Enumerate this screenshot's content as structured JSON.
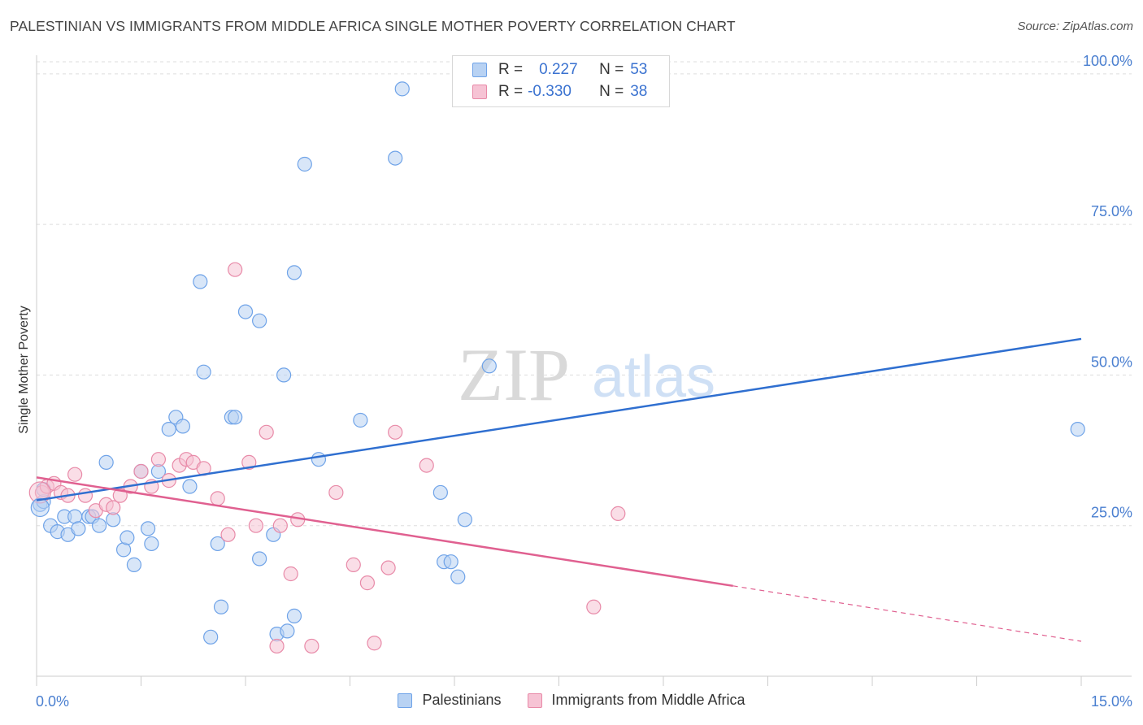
{
  "header": {
    "title": "PALESTINIAN VS IMMIGRANTS FROM MIDDLE AFRICA SINGLE MOTHER POVERTY CORRELATION CHART",
    "source": "Source: ZipAtlas.com"
  },
  "watermark": {
    "zip": "ZIP",
    "atlas": "atlas"
  },
  "legend": {
    "rows": [
      {
        "r_label": "R =",
        "r_value": "0.227",
        "n_label": "N =",
        "n_value": "53"
      },
      {
        "r_label": "R =",
        "r_value": "-0.330",
        "n_label": "N =",
        "n_value": "38"
      }
    ]
  },
  "chart_data": {
    "type": "scatter",
    "title": "PALESTINIAN VS IMMIGRANTS FROM MIDDLE AFRICA SINGLE MOTHER POVERTY CORRELATION CHART",
    "xlabel": "",
    "ylabel": "Single Mother Poverty",
    "xlim": [
      0,
      15
    ],
    "ylim": [
      0,
      102
    ],
    "x_tick_labels": [
      "0.0%",
      "15.0%"
    ],
    "y_ticks": [
      25,
      50,
      75,
      100
    ],
    "y_tick_labels": [
      "25.0%",
      "50.0%",
      "75.0%",
      "100.0%"
    ],
    "grid": true,
    "legend_placement": "top-center",
    "series": [
      {
        "name": "Palestinians",
        "color": "#6fa3e8",
        "fill": "#b8d2f3",
        "points": [
          [
            0.05,
            28.5
          ],
          [
            0.1,
            29.0
          ],
          [
            0.2,
            25.0
          ],
          [
            0.3,
            24.0
          ],
          [
            0.4,
            26.5
          ],
          [
            0.45,
            23.5
          ],
          [
            0.55,
            26.5
          ],
          [
            0.6,
            24.5
          ],
          [
            0.75,
            26.5
          ],
          [
            0.8,
            26.5
          ],
          [
            0.9,
            25.0
          ],
          [
            1.0,
            35.5
          ],
          [
            1.1,
            26.0
          ],
          [
            1.25,
            21.0
          ],
          [
            1.3,
            23.0
          ],
          [
            1.4,
            18.5
          ],
          [
            1.5,
            34.0
          ],
          [
            1.6,
            24.5
          ],
          [
            1.65,
            22.0
          ],
          [
            1.75,
            34.0
          ],
          [
            1.9,
            41.0
          ],
          [
            2.0,
            43.0
          ],
          [
            2.1,
            41.5
          ],
          [
            2.2,
            31.5
          ],
          [
            2.35,
            65.5
          ],
          [
            2.4,
            50.5
          ],
          [
            2.5,
            6.5
          ],
          [
            2.6,
            22.0
          ],
          [
            2.65,
            11.5
          ],
          [
            2.8,
            43.0
          ],
          [
            2.85,
            43.0
          ],
          [
            3.0,
            60.5
          ],
          [
            3.2,
            19.5
          ],
          [
            3.2,
            59.0
          ],
          [
            3.4,
            23.5
          ],
          [
            3.45,
            7.0
          ],
          [
            3.6,
            7.5
          ],
          [
            3.55,
            50.0
          ],
          [
            3.7,
            10.0
          ],
          [
            3.7,
            67.0
          ],
          [
            3.85,
            85.0
          ],
          [
            4.05,
            36.0
          ],
          [
            4.65,
            42.5
          ],
          [
            5.15,
            86.0
          ],
          [
            5.25,
            97.5
          ],
          [
            5.8,
            30.5
          ],
          [
            5.85,
            19.0
          ],
          [
            5.95,
            19.0
          ],
          [
            6.05,
            16.5
          ],
          [
            6.15,
            26.0
          ],
          [
            6.5,
            51.5
          ],
          [
            14.95,
            41.0
          ],
          [
            0.1,
            31.0
          ]
        ],
        "trend": {
          "x_start": 0.0,
          "y_start": 29.2,
          "x_end": 15.0,
          "y_end": 56.0
        }
      },
      {
        "name": "Immigrants from Middle Africa",
        "color": "#e88aa8",
        "fill": "#f6c3d4",
        "points": [
          [
            0.08,
            30.5
          ],
          [
            0.15,
            31.5
          ],
          [
            0.25,
            32.0
          ],
          [
            0.35,
            30.5
          ],
          [
            0.45,
            30.0
          ],
          [
            0.55,
            33.5
          ],
          [
            0.7,
            30.0
          ],
          [
            0.85,
            27.5
          ],
          [
            1.0,
            28.5
          ],
          [
            1.1,
            28.0
          ],
          [
            1.2,
            30.0
          ],
          [
            1.35,
            31.5
          ],
          [
            1.5,
            34.0
          ],
          [
            1.65,
            31.5
          ],
          [
            1.75,
            36.0
          ],
          [
            1.9,
            32.5
          ],
          [
            2.05,
            35.0
          ],
          [
            2.15,
            36.0
          ],
          [
            2.25,
            35.5
          ],
          [
            2.4,
            34.5
          ],
          [
            2.6,
            29.5
          ],
          [
            2.75,
            23.5
          ],
          [
            2.85,
            67.5
          ],
          [
            3.05,
            35.5
          ],
          [
            3.15,
            25.0
          ],
          [
            3.3,
            40.5
          ],
          [
            3.45,
            5.0
          ],
          [
            3.5,
            25.0
          ],
          [
            3.65,
            17.0
          ],
          [
            3.75,
            26.0
          ],
          [
            3.95,
            5.0
          ],
          [
            4.3,
            30.5
          ],
          [
            4.55,
            18.5
          ],
          [
            4.75,
            15.5
          ],
          [
            4.85,
            5.5
          ],
          [
            5.05,
            18.0
          ],
          [
            5.15,
            40.5
          ],
          [
            5.6,
            35.0
          ]
        ],
        "extra_points": [
          [
            8.35,
            27.0
          ],
          [
            8.0,
            11.5
          ]
        ],
        "trend": {
          "x_start": 0.0,
          "y_start": 33.0,
          "x_end": 10.0,
          "y_end": 15.0,
          "dash_x_end": 15.0,
          "dash_y_end": 5.8
        }
      }
    ]
  },
  "bottom_legend": {
    "items": [
      "Palestinians",
      "Immigrants from Middle Africa"
    ]
  },
  "colors": {
    "blue_line": "#2f6fd0",
    "pink_line": "#e06090",
    "grid": "#dddddd",
    "tick_text": "#4a7fd0"
  }
}
